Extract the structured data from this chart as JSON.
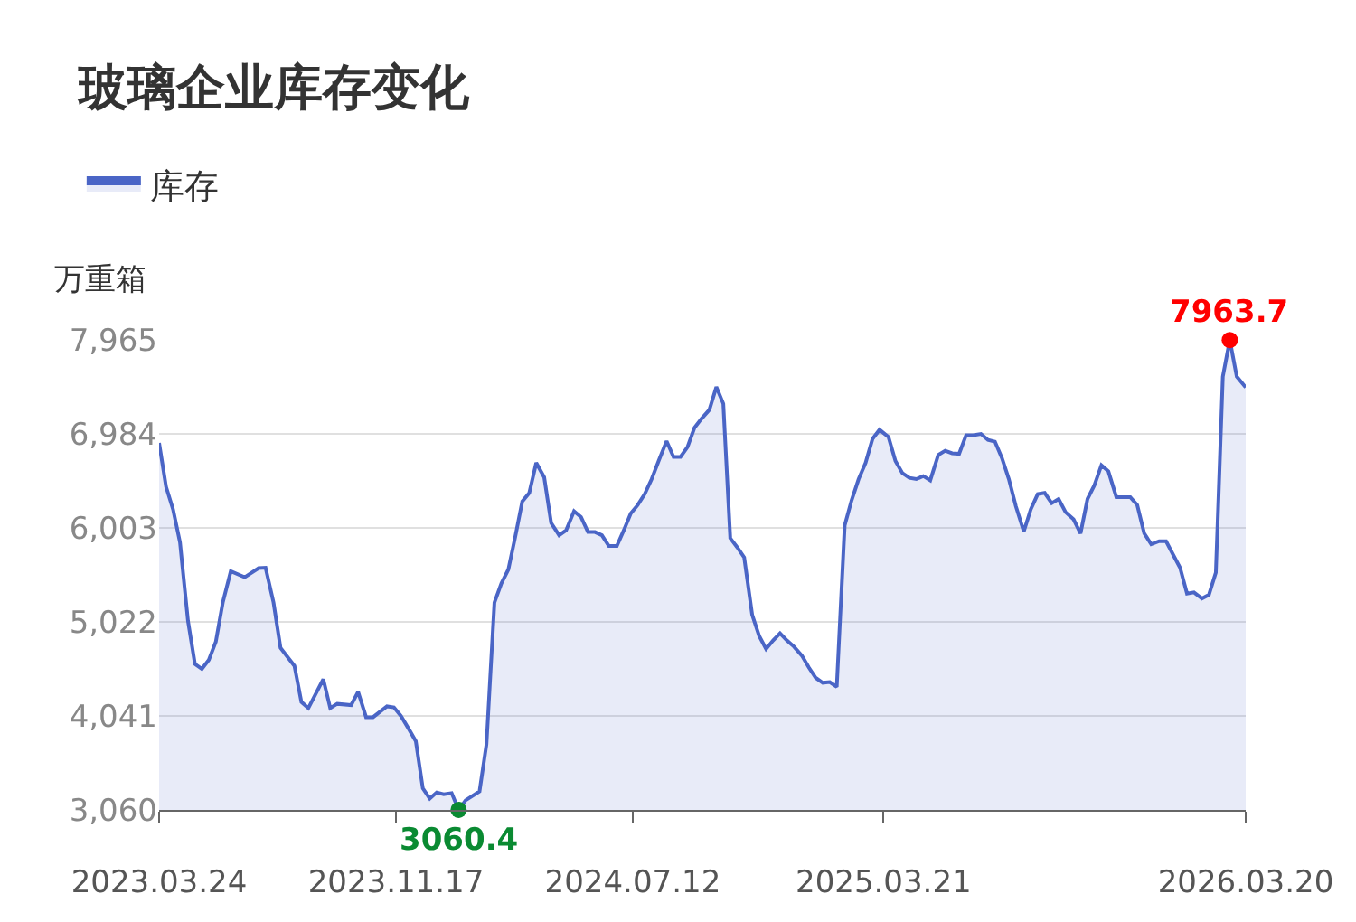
{
  "chart_data": {
    "type": "area",
    "title": "玻璃企业库存变化",
    "ylabel": "万重箱",
    "x": [
      "2023-03-24",
      "2023-03-31",
      "2023-04-07",
      "2023-04-14",
      "2023-04-22",
      "2023-04-29",
      "2023-05-06",
      "2023-05-13",
      "2023-05-20",
      "2023-05-27",
      "2023-06-04",
      "2023-06-18",
      "2023-07-02",
      "2023-07-09",
      "2023-07-17",
      "2023-07-24",
      "2023-08-07",
      "2023-08-14",
      "2023-08-21",
      "2023-09-05",
      "2023-09-12",
      "2023-09-19",
      "2023-10-03",
      "2023-10-10",
      "2023-10-18",
      "2023-10-25",
      "2023-11-08",
      "2023-11-15",
      "2023-11-22",
      "2023-11-30",
      "2023-12-07",
      "2023-12-14",
      "2023-12-21",
      "2023-12-28",
      "2024-01-04",
      "2024-01-12",
      "2024-01-19",
      "2024-01-26",
      "2024-02-09",
      "2024-02-16",
      "2024-02-24",
      "2024-03-02",
      "2024-03-09",
      "2024-03-16",
      "2024-03-23",
      "2024-03-30",
      "2024-04-06",
      "2024-04-14",
      "2024-04-21",
      "2024-04-29",
      "2024-05-06",
      "2024-05-14",
      "2024-05-21",
      "2024-05-28",
      "2024-06-04",
      "2024-06-11",
      "2024-06-18",
      "2024-06-26",
      "2024-07-03",
      "2024-07-10",
      "2024-07-17",
      "2024-07-24",
      "2024-07-31",
      "2024-08-07",
      "2024-08-15",
      "2024-08-22",
      "2024-08-29",
      "2024-09-05",
      "2024-09-12",
      "2024-09-19",
      "2024-09-27",
      "2024-10-04",
      "2024-10-11",
      "2024-10-18",
      "2024-10-25",
      "2024-11-01",
      "2024-11-09",
      "2024-11-16",
      "2024-11-23",
      "2024-11-30",
      "2024-12-07",
      "2024-12-14",
      "2024-12-21",
      "2024-12-29",
      "2025-01-05",
      "2025-01-12",
      "2025-01-19",
      "2025-01-26",
      "2025-02-02",
      "2025-02-10",
      "2025-02-17",
      "2025-02-24",
      "2025-03-03",
      "2025-03-10",
      "2025-03-17",
      "2025-03-26",
      "2025-04-02",
      "2025-04-09",
      "2025-04-16",
      "2025-04-23",
      "2025-04-30",
      "2025-05-07",
      "2025-05-15",
      "2025-05-22",
      "2025-05-29",
      "2025-06-05",
      "2025-06-12",
      "2025-06-19",
      "2025-06-27",
      "2025-07-04",
      "2025-07-11",
      "2025-07-18",
      "2025-07-25",
      "2025-08-01",
      "2025-08-09",
      "2025-08-16",
      "2025-08-23",
      "2025-08-30",
      "2025-09-06",
      "2025-09-13",
      "2025-09-20",
      "2025-09-28",
      "2025-10-05",
      "2025-10-12",
      "2025-10-19",
      "2025-10-26",
      "2025-11-02",
      "2025-11-10",
      "2025-11-17",
      "2025-11-24",
      "2025-12-01",
      "2025-12-08",
      "2025-12-15",
      "2025-12-23",
      "2025-12-30",
      "2026-01-06",
      "2026-01-13",
      "2026-01-20",
      "2026-01-27",
      "2026-02-04",
      "2026-02-11",
      "2026-02-18",
      "2026-02-25",
      "2026-03-04",
      "2026-03-11",
      "2026-03-20"
    ],
    "series": [
      {
        "name": "库存",
        "color": "#4a65c6",
        "values": [
          6890,
          6431,
          6197,
          5852,
          5035,
          4583,
          4531,
          4626,
          4814,
          5224,
          5550,
          5488,
          5583,
          5588,
          5224,
          4752,
          4563,
          4186,
          4122,
          4424,
          4122,
          4167,
          4154,
          4292,
          4028,
          4028,
          4141,
          4130,
          4041,
          3903,
          3777,
          3286,
          3179,
          3243,
          3224,
          3236,
          3060.4,
          3160,
          3254,
          3745,
          5224,
          5424,
          5569,
          5914,
          6280,
          6368,
          6682,
          6531,
          6054,
          5927,
          5978,
          6178,
          6116,
          5960,
          5960,
          5927,
          5814,
          5814,
          5978,
          6154,
          6242,
          6356,
          6512,
          6701,
          6908,
          6744,
          6744,
          6846,
          7047,
          7141,
          7235,
          7474,
          7299,
          5896,
          5801,
          5695,
          5097,
          4877,
          4739,
          4828,
          4903,
          4828,
          4764,
          4670,
          4545,
          4437,
          4387,
          4394,
          4343,
          6028,
          6293,
          6512,
          6682,
          6933,
          7027,
          6952,
          6701,
          6574,
          6525,
          6512,
          6544,
          6499,
          6763,
          6808,
          6782,
          6776,
          6971,
          6971,
          6984,
          6921,
          6903,
          6733,
          6512,
          6229,
          5965,
          6197,
          6356,
          6368,
          6261,
          6305,
          6167,
          6092,
          5946,
          6305,
          6450,
          6657,
          6594,
          6324,
          6324,
          6324,
          6242,
          5946,
          5833,
          5864,
          5864,
          5725,
          5588,
          5318,
          5330,
          5267,
          5305,
          5537,
          7582,
          7963.7,
          7582,
          7469
        ]
      }
    ],
    "xlim": [
      "2023-03-24",
      "2026-03-20"
    ],
    "xticks": [
      {
        "value": "2023-03-24",
        "label": "2023.03.24"
      },
      {
        "value": "2023-11-17",
        "label": "2023.11.17"
      },
      {
        "value": "2024-07-12",
        "label": "2024.07.12"
      },
      {
        "value": "2025-03-21",
        "label": "2025.03.21"
      },
      {
        "value": "2026-03-20",
        "label": "2026.03.20"
      }
    ],
    "ylim": [
      3060,
      7965
    ],
    "yticks": [
      {
        "value": 3060,
        "label": "3,060"
      },
      {
        "value": 4041,
        "label": "4,041"
      },
      {
        "value": 5022,
        "label": "5,022"
      },
      {
        "value": 6003,
        "label": "6,003"
      },
      {
        "value": 6984,
        "label": "6,984"
      },
      {
        "value": 7965,
        "label": "7,965"
      }
    ],
    "annotations": [
      {
        "text": "7963.7",
        "x": "2026-03-04",
        "y": 7963.7
      },
      {
        "text": "3060.4",
        "x": "2024-01-19",
        "y": 3060.4
      }
    ],
    "grid": "y",
    "legend": "top left",
    "marker": "none",
    "line_style": "solid"
  }
}
